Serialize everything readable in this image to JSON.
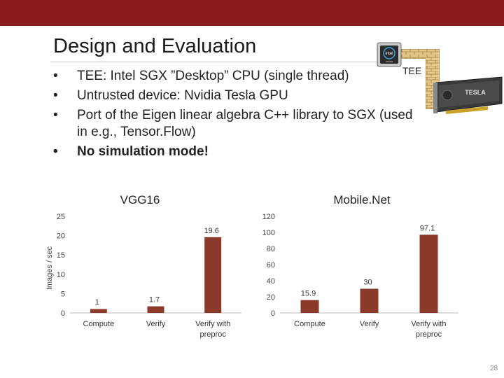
{
  "slide": {
    "title": "Design and Evaluation",
    "page_number": "28",
    "bullets": [
      {
        "marker": "•",
        "text": "TEE: Intel SGX ”Desktop” CPU (single thread)",
        "bold": false
      },
      {
        "marker": "•",
        "text": "Untrusted device: Nvidia Tesla GPU",
        "bold": false
      },
      {
        "marker": "•",
        "text": "Port of the Eigen linear algebra C++ library to SGX (used in e.g., Tensor.Flow)",
        "bold": false
      },
      {
        "marker": "•",
        "text": "No simulation mode!",
        "bold": true
      }
    ],
    "diagram": {
      "tee_label": "TEE",
      "chip_brand_text": "intel",
      "chip_sub_text": "Inside",
      "gpu_text": "TESLA"
    },
    "colors": {
      "header": "#8b1a1a",
      "bar": "#8b3a2a",
      "wall": "#e8c98a"
    }
  },
  "chart_data": [
    {
      "type": "bar",
      "title": "VGG16",
      "ylabel": "Images / sec",
      "categories": [
        "Compute",
        "Verify",
        "Verify with preproc"
      ],
      "values": [
        1,
        1.7,
        19.6
      ],
      "value_labels": [
        "1",
        "1.7",
        "19.6"
      ],
      "ylim": [
        0,
        25
      ],
      "yticks": [
        0,
        5,
        10,
        15,
        20,
        25
      ],
      "grid": false,
      "legend": "none"
    },
    {
      "type": "bar",
      "title": "Mobile.Net",
      "ylabel": "",
      "categories": [
        "Compute",
        "Verify",
        "Verify with preproc"
      ],
      "values": [
        15.9,
        30,
        97.1
      ],
      "value_labels": [
        "15.9",
        "30",
        "97.1"
      ],
      "ylim": [
        0,
        120
      ],
      "yticks": [
        0,
        20,
        40,
        60,
        80,
        100,
        120
      ],
      "grid": false,
      "legend": "none"
    }
  ]
}
